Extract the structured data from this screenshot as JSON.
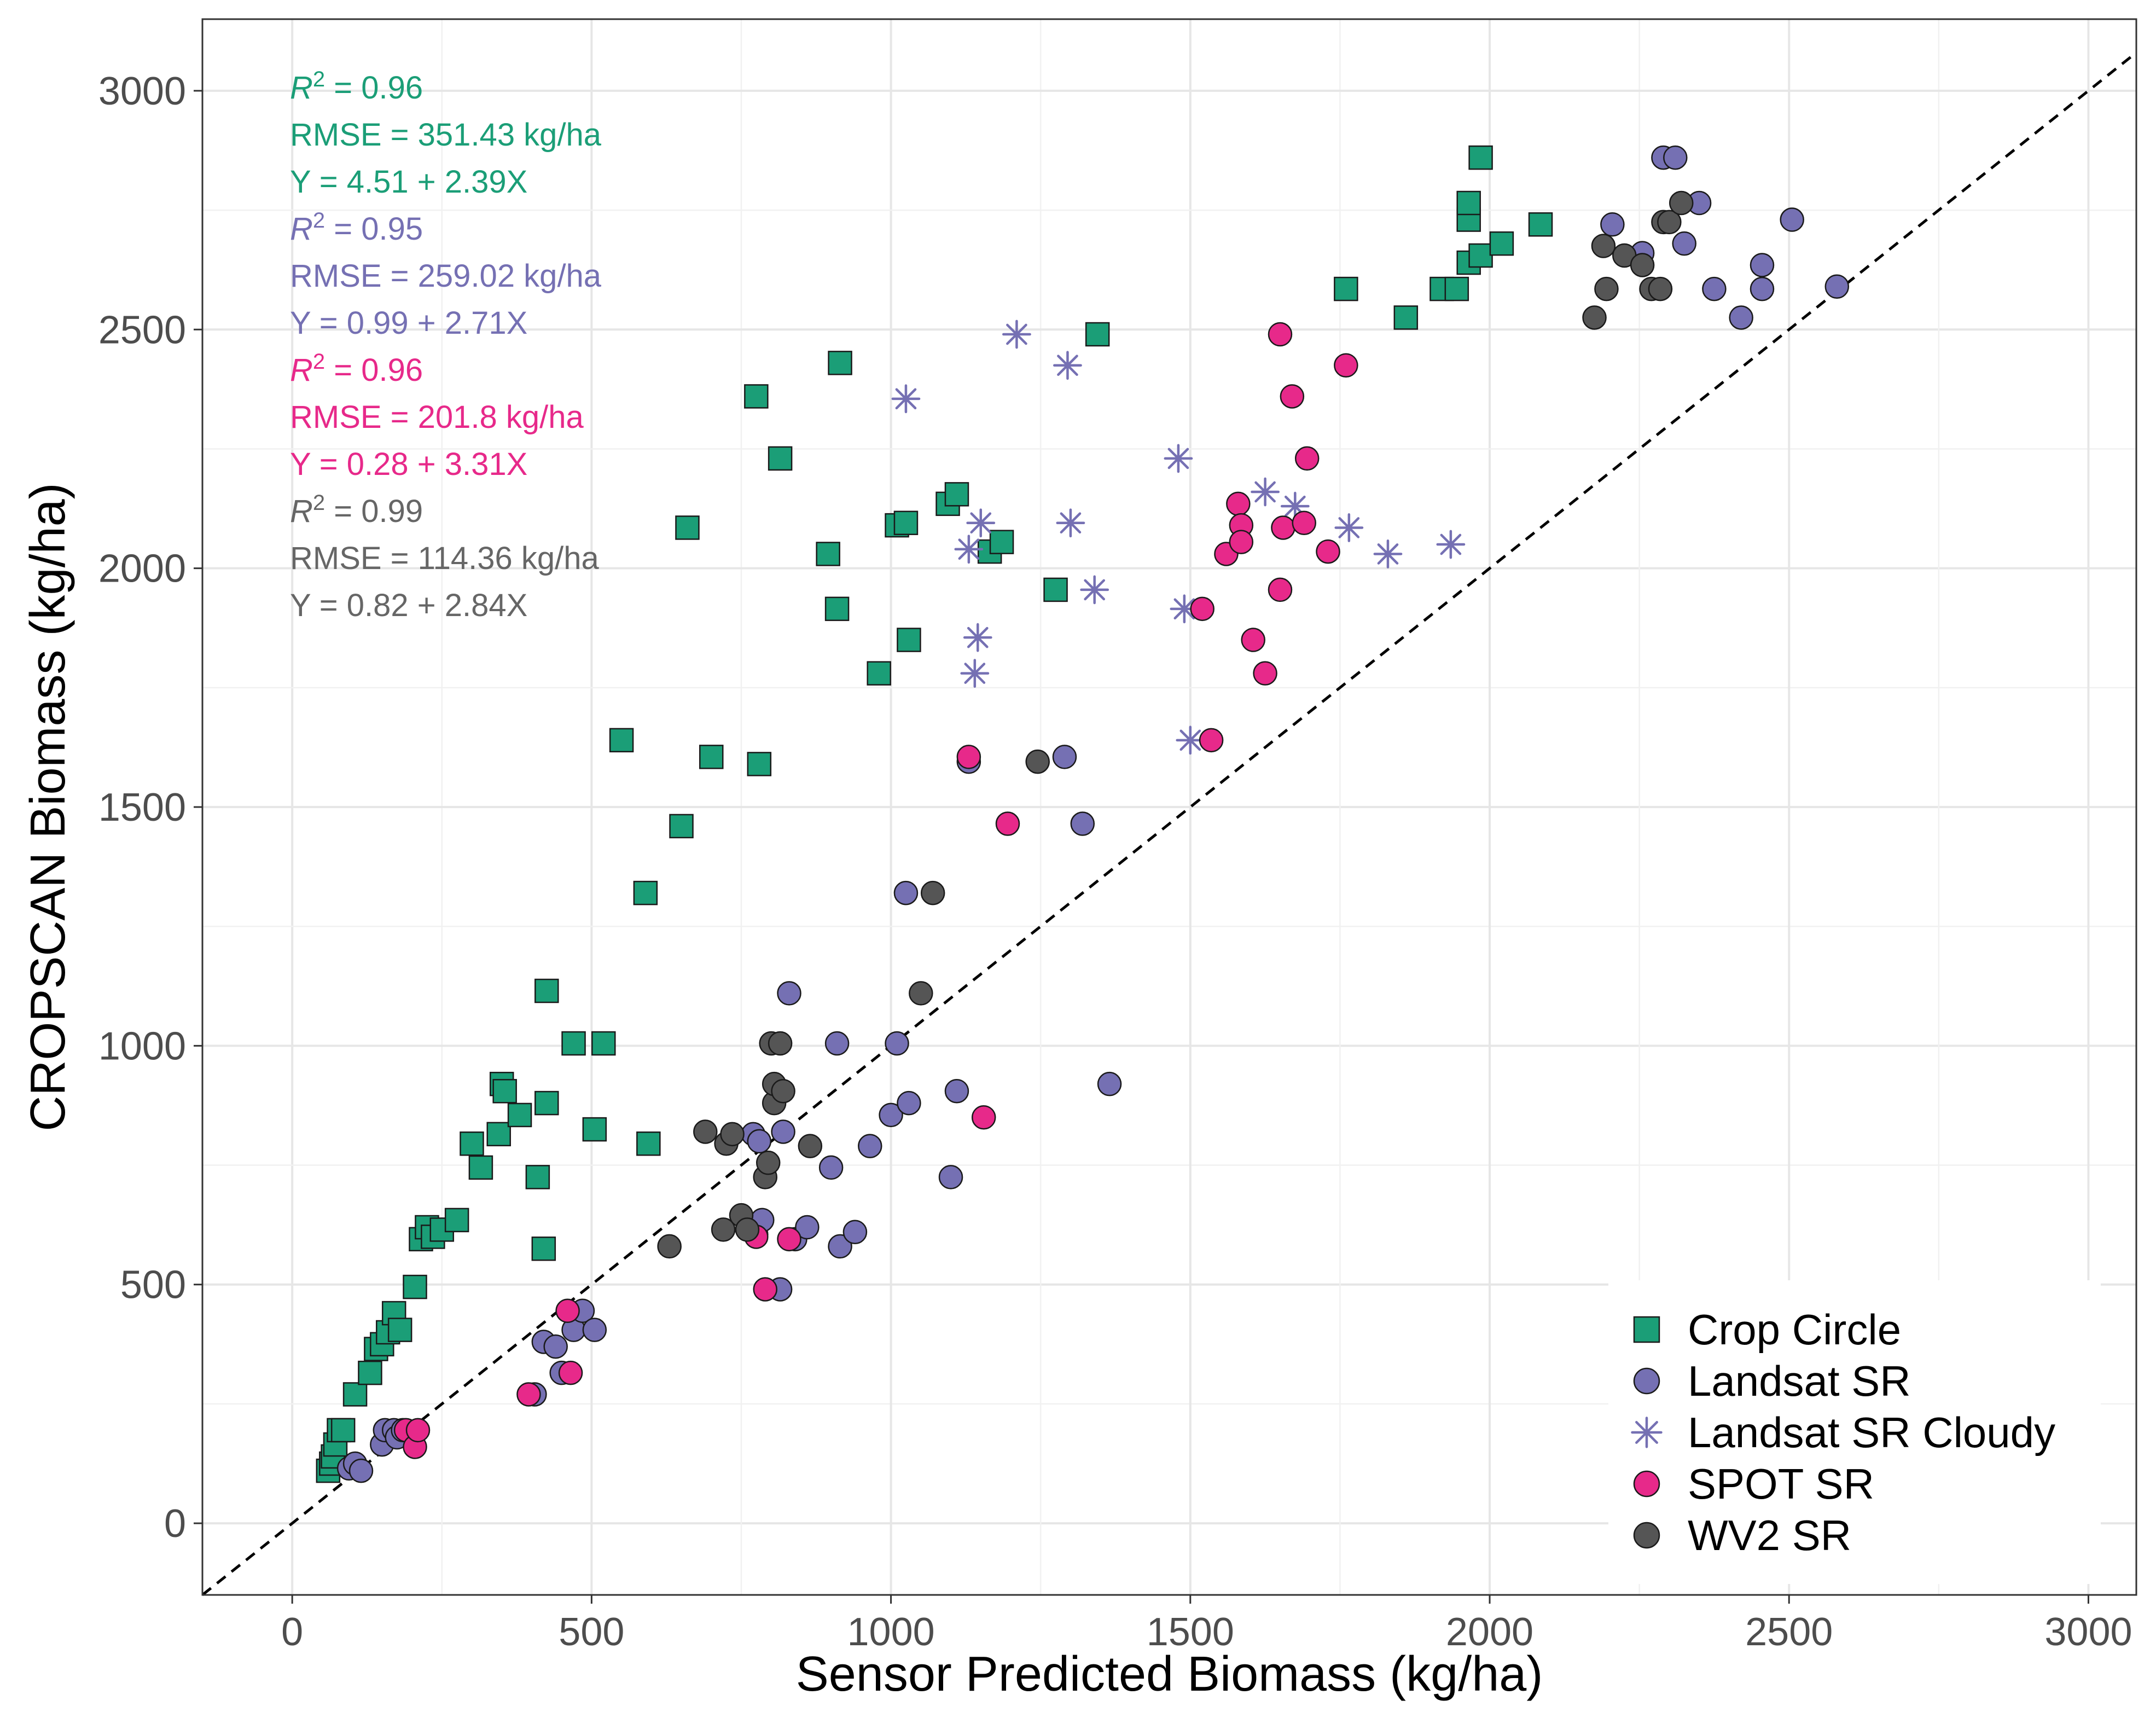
{
  "chart_data": {
    "type": "scatter",
    "title": "",
    "xlabel": "Sensor Predicted Biomass (kg/ha)",
    "ylabel": "CROPSCAN Biomass (kg/ha)",
    "xlim": [
      -150,
      3080
    ],
    "ylim": [
      -150,
      3150
    ],
    "x_ticks": [
      0,
      500,
      1000,
      1500,
      2000,
      2500,
      3000
    ],
    "y_ticks": [
      0,
      500,
      1000,
      1500,
      2000,
      2500,
      3000
    ],
    "x_tick_labels": [
      "0",
      "500",
      "1000",
      "1500",
      "2000",
      "2500",
      "3000"
    ],
    "y_tick_labels": [
      "0",
      "500",
      "1000",
      "1500",
      "2000",
      "2500",
      "3000"
    ],
    "grid": true,
    "reference_line": {
      "type": "1:1",
      "style": "dashed",
      "color": "#000000"
    },
    "legend_position": "bottom-right",
    "annotations": [
      {
        "r2_label": "R",
        "r2_value": "2 = 0.96",
        "rmse": "RMSE = 351.43 kg/ha",
        "equation": "Y = 4.51 + 2.39X",
        "color": "#1b9e77"
      },
      {
        "r2_label": "R",
        "r2_value": "2 = 0.95",
        "rmse": "RMSE = 259.02 kg/ha",
        "equation": "Y = 0.99 + 2.71X",
        "color": "#7570b3"
      },
      {
        "r2_label": "R",
        "r2_value": "2 = 0.96",
        "rmse": "RMSE = 201.8 kg/ha",
        "equation": "Y = 0.28 + 3.31X",
        "color": "#e7298a"
      },
      {
        "r2_label": "R",
        "r2_value": "2 = 0.99",
        "rmse": "RMSE = 114.36 kg/ha",
        "equation": "Y = 0.82 + 2.84X",
        "color": "#666666"
      }
    ],
    "series": [
      {
        "name": "Crop Circle",
        "marker": "square",
        "color": "#1b9e77",
        "points": [
          [
            60,
            110
          ],
          [
            65,
            125
          ],
          [
            68,
            140
          ],
          [
            72,
            165
          ],
          [
            78,
            195
          ],
          [
            85,
            195
          ],
          [
            105,
            270
          ],
          [
            130,
            315
          ],
          [
            140,
            365
          ],
          [
            150,
            375
          ],
          [
            160,
            400
          ],
          [
            170,
            440
          ],
          [
            180,
            405
          ],
          [
            205,
            495
          ],
          [
            215,
            595
          ],
          [
            225,
            620
          ],
          [
            235,
            600
          ],
          [
            250,
            615
          ],
          [
            275,
            635
          ],
          [
            300,
            795
          ],
          [
            315,
            745
          ],
          [
            345,
            815
          ],
          [
            350,
            920
          ],
          [
            355,
            905
          ],
          [
            380,
            855
          ],
          [
            410,
            725
          ],
          [
            420,
            575
          ],
          [
            425,
            880
          ],
          [
            425,
            1115
          ],
          [
            470,
            1005
          ],
          [
            505,
            825
          ],
          [
            520,
            1005
          ],
          [
            595,
            795
          ],
          [
            590,
            1320
          ],
          [
            550,
            1640
          ],
          [
            650,
            1460
          ],
          [
            660,
            2085
          ],
          [
            700,
            1605
          ],
          [
            780,
            1590
          ],
          [
            775,
            2360
          ],
          [
            815,
            2230
          ],
          [
            895,
            2030
          ],
          [
            910,
            1915
          ],
          [
            915,
            2430
          ],
          [
            980,
            1780
          ],
          [
            1010,
            2090
          ],
          [
            1025,
            2095
          ],
          [
            1030,
            1850
          ],
          [
            1095,
            2135
          ],
          [
            1110,
            2155
          ],
          [
            1165,
            2035
          ],
          [
            1185,
            2055
          ],
          [
            1275,
            1955
          ],
          [
            1345,
            2490
          ],
          [
            1760,
            2585
          ],
          [
            1860,
            2525
          ],
          [
            1920,
            2585
          ],
          [
            1945,
            2585
          ],
          [
            1965,
            2640
          ],
          [
            1965,
            2730
          ],
          [
            1965,
            2765
          ],
          [
            1985,
            2860
          ],
          [
            1985,
            2655
          ],
          [
            2020,
            2680
          ],
          [
            2085,
            2720
          ]
        ]
      },
      {
        "name": "Landsat SR",
        "marker": "circle",
        "color": "#7570b3",
        "points": [
          [
            95,
            115
          ],
          [
            105,
            125
          ],
          [
            115,
            110
          ],
          [
            150,
            165
          ],
          [
            155,
            195
          ],
          [
            170,
            195
          ],
          [
            175,
            180
          ],
          [
            185,
            195
          ],
          [
            405,
            270
          ],
          [
            420,
            380
          ],
          [
            440,
            370
          ],
          [
            450,
            315
          ],
          [
            470,
            405
          ],
          [
            485,
            445
          ],
          [
            505,
            405
          ],
          [
            770,
            815
          ],
          [
            780,
            800
          ],
          [
            775,
            605
          ],
          [
            785,
            635
          ],
          [
            815,
            490
          ],
          [
            820,
            820
          ],
          [
            830,
            1110
          ],
          [
            840,
            595
          ],
          [
            860,
            620
          ],
          [
            900,
            745
          ],
          [
            910,
            1005
          ],
          [
            915,
            580
          ],
          [
            940,
            610
          ],
          [
            965,
            790
          ],
          [
            1000,
            855
          ],
          [
            1010,
            1005
          ],
          [
            1025,
            1320
          ],
          [
            1030,
            880
          ],
          [
            1100,
            725
          ],
          [
            1110,
            905
          ],
          [
            1130,
            1595
          ],
          [
            1290,
            1605
          ],
          [
            1320,
            1465
          ],
          [
            1365,
            920
          ],
          [
            2205,
            2720
          ],
          [
            2255,
            2660
          ],
          [
            2290,
            2860
          ],
          [
            2310,
            2860
          ],
          [
            2325,
            2680
          ],
          [
            2350,
            2765
          ],
          [
            2375,
            2585
          ],
          [
            2420,
            2525
          ],
          [
            2455,
            2585
          ],
          [
            2455,
            2635
          ],
          [
            2505,
            2730
          ],
          [
            2580,
            2590
          ]
        ]
      },
      {
        "name": "Landsat SR Cloudy",
        "marker": "star",
        "color": "#7570b3",
        "points": [
          [
            1025,
            2355
          ],
          [
            1130,
            2040
          ],
          [
            1140,
            1780
          ],
          [
            1145,
            1855
          ],
          [
            1150,
            2095
          ],
          [
            1210,
            2490
          ],
          [
            1295,
            2425
          ],
          [
            1300,
            2095
          ],
          [
            1340,
            1955
          ],
          [
            1480,
            2230
          ],
          [
            1490,
            1915
          ],
          [
            1500,
            1640
          ],
          [
            1625,
            2160
          ],
          [
            1675,
            2130
          ],
          [
            1765,
            2085
          ],
          [
            1830,
            2030
          ],
          [
            1935,
            2050
          ]
        ]
      },
      {
        "name": "SPOT SR",
        "marker": "circle",
        "color": "#e7298a",
        "points": [
          [
            190,
            195
          ],
          [
            205,
            160
          ],
          [
            210,
            195
          ],
          [
            395,
            270
          ],
          [
            460,
            445
          ],
          [
            465,
            315
          ],
          [
            775,
            600
          ],
          [
            790,
            490
          ],
          [
            830,
            595
          ],
          [
            1130,
            1605
          ],
          [
            1155,
            850
          ],
          [
            1195,
            1465
          ],
          [
            1520,
            1915
          ],
          [
            1535,
            1640
          ],
          [
            1560,
            2030
          ],
          [
            1580,
            2135
          ],
          [
            1585,
            2090
          ],
          [
            1585,
            2055
          ],
          [
            1605,
            1850
          ],
          [
            1625,
            1780
          ],
          [
            1650,
            2490
          ],
          [
            1650,
            1955
          ],
          [
            1655,
            2085
          ],
          [
            1670,
            2360
          ],
          [
            1690,
            2095
          ],
          [
            1695,
            2230
          ],
          [
            1730,
            2035
          ],
          [
            1760,
            2425
          ]
        ]
      },
      {
        "name": "WV2 SR",
        "marker": "circle",
        "color": "#555555",
        "points": [
          [
            630,
            580
          ],
          [
            690,
            820
          ],
          [
            720,
            615
          ],
          [
            725,
            795
          ],
          [
            735,
            815
          ],
          [
            750,
            645
          ],
          [
            760,
            615
          ],
          [
            790,
            725
          ],
          [
            795,
            755
          ],
          [
            800,
            1005
          ],
          [
            805,
            880
          ],
          [
            805,
            920
          ],
          [
            815,
            1005
          ],
          [
            820,
            905
          ],
          [
            865,
            790
          ],
          [
            1050,
            1110
          ],
          [
            1070,
            1320
          ],
          [
            1245,
            1595
          ],
          [
            2175,
            2525
          ],
          [
            2190,
            2675
          ],
          [
            2195,
            2585
          ],
          [
            2225,
            2655
          ],
          [
            2255,
            2635
          ],
          [
            2270,
            2585
          ],
          [
            2285,
            2585
          ],
          [
            2290,
            2725
          ],
          [
            2300,
            2725
          ],
          [
            2320,
            2765
          ]
        ]
      }
    ]
  }
}
